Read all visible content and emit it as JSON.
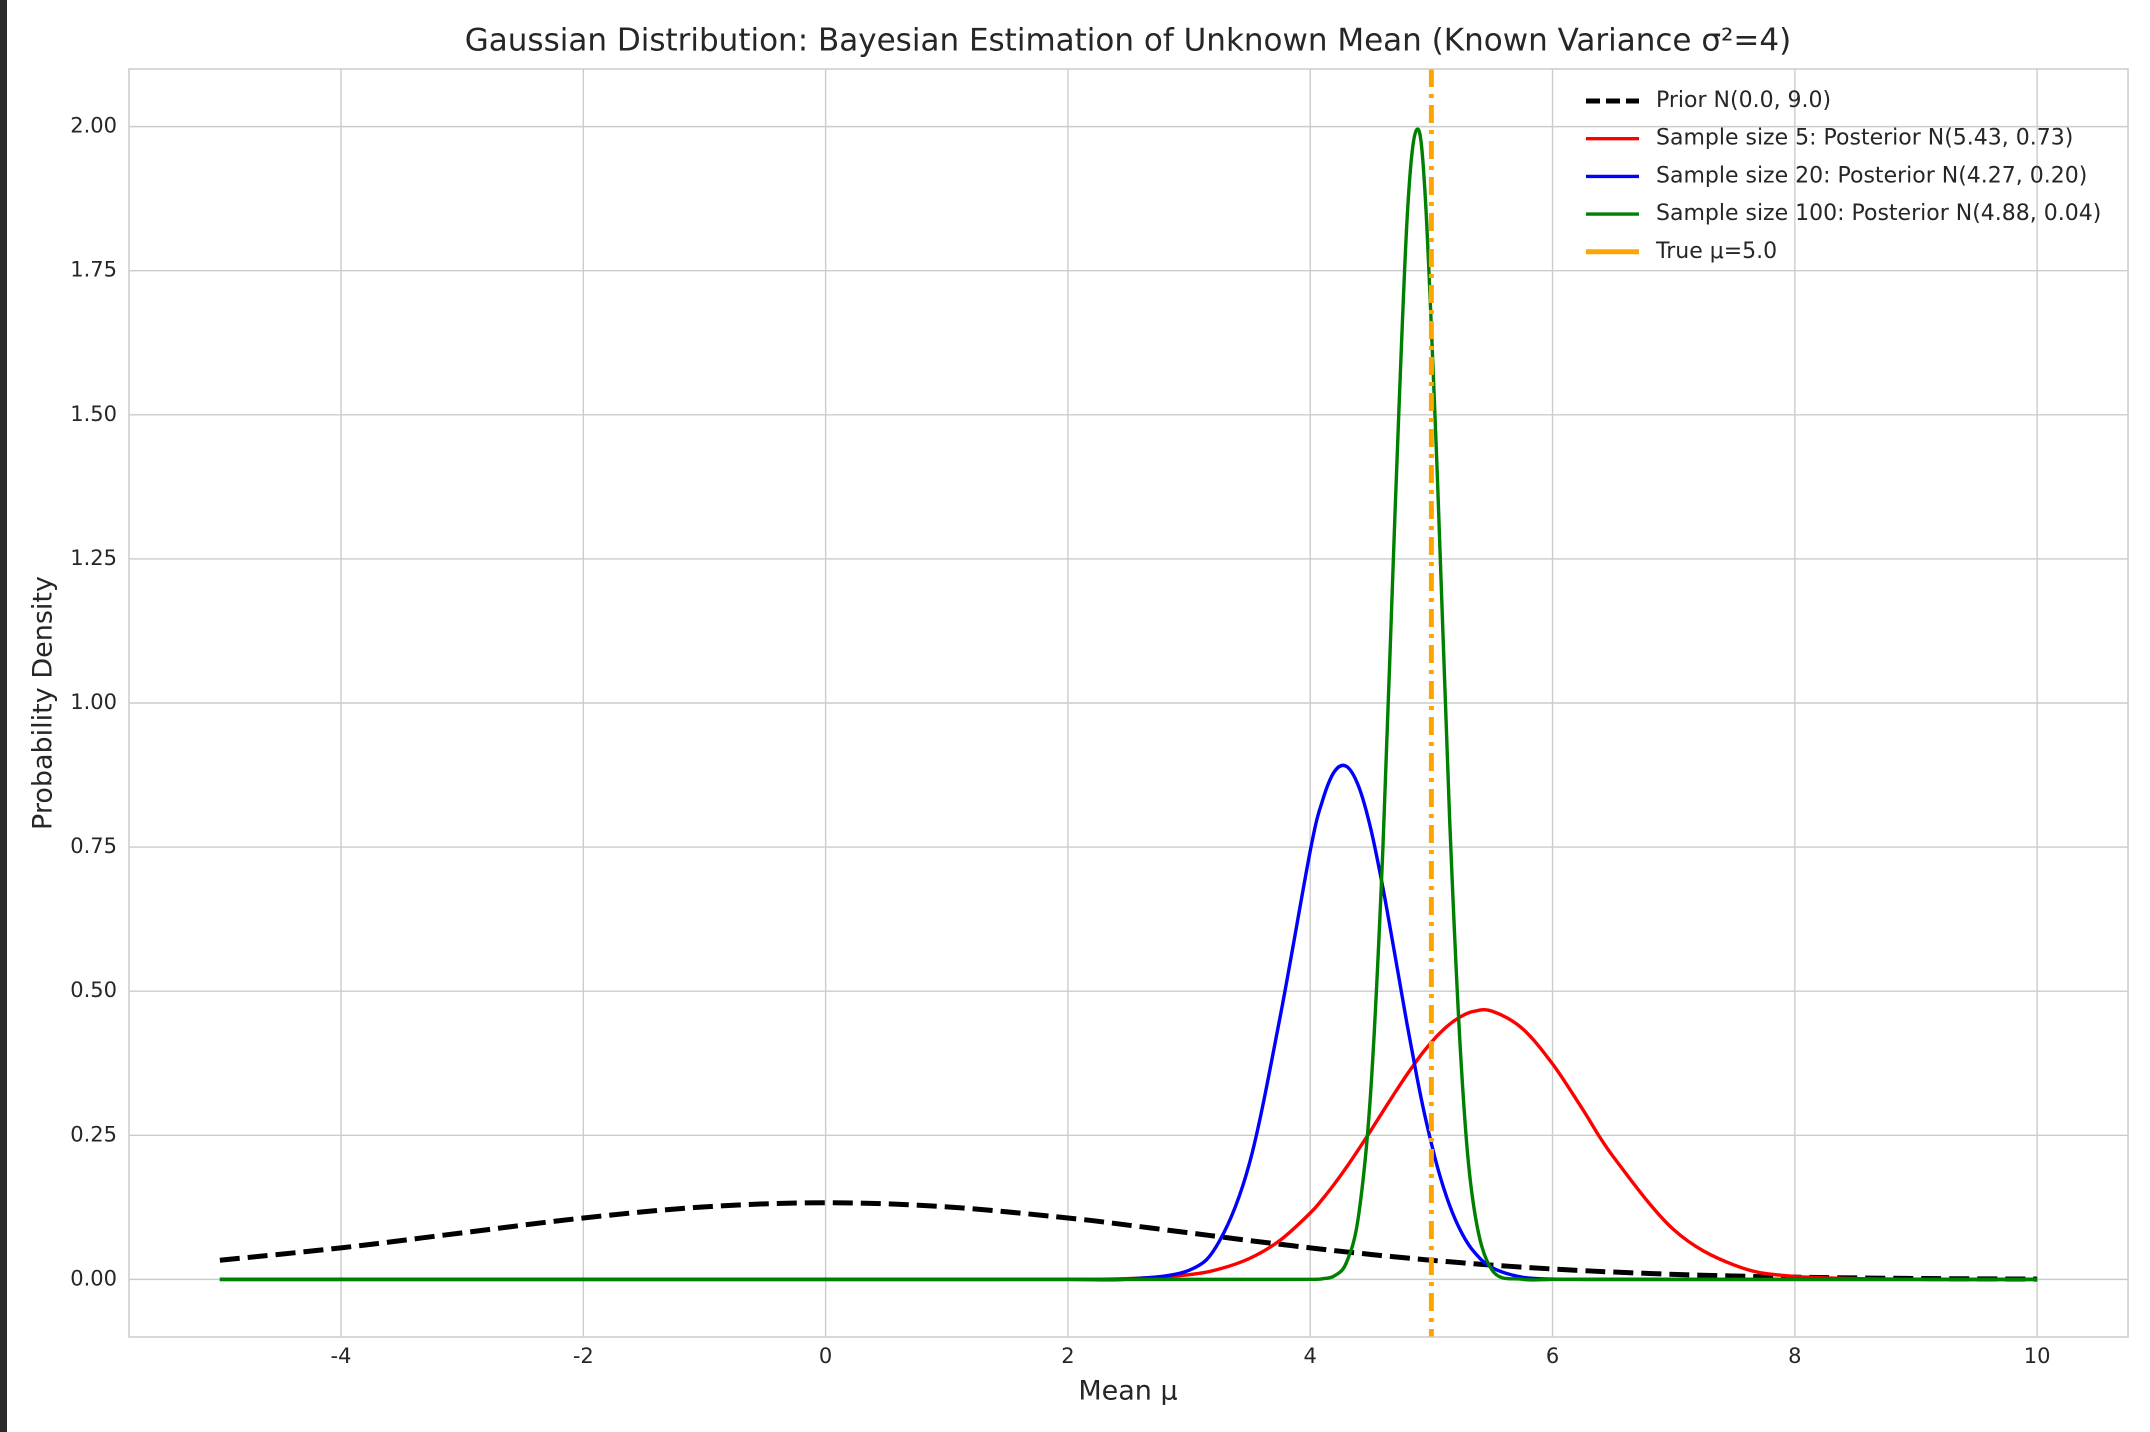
{
  "chart_data": {
    "type": "line",
    "title": "Gaussian Distribution: Bayesian Estimation of Unknown Mean (Known Variance σ²=4)",
    "x_label": "Mean μ",
    "y_label": "Probability Density",
    "x": [
      -5,
      -4,
      -3,
      -2,
      -1,
      0,
      1,
      2,
      2.5,
      3,
      3.25,
      3.5,
      3.75,
      4,
      4.1,
      4.2,
      4.3,
      4.4,
      4.5,
      4.6,
      4.7,
      4.8,
      4.88,
      4.95,
      5.05,
      5.15,
      5.25,
      5.35,
      5.5,
      5.75,
      6,
      6.25,
      6.5,
      7,
      7.5,
      8,
      9,
      10
    ],
    "series": [
      {
        "name": "Prior N(0.0, 9.0)",
        "color": "#000000",
        "linestyle": "dashed",
        "values": [
          0.0332,
          0.0547,
          0.0807,
          0.1065,
          0.1258,
          0.133,
          0.1258,
          0.1065,
          0.094,
          0.0807,
          0.074,
          0.0673,
          0.0609,
          0.0547,
          0.0523,
          0.0499,
          0.0476,
          0.0454,
          0.0432,
          0.041,
          0.039,
          0.037,
          0.0354,
          0.0341,
          0.0322,
          0.0305,
          0.0288,
          0.0271,
          0.0248,
          0.0212,
          0.018,
          0.0152,
          0.0127,
          0.0087,
          0.0058,
          0.0038,
          0.0015,
          0.0005
        ]
      },
      {
        "name": "Sample size 5: Posterior N(5.43, 0.73)",
        "color": "#ff0000",
        "linestyle": "solid",
        "values": [
          0,
          0,
          0,
          0,
          0,
          0,
          0,
          0.0001,
          0.0013,
          0.0082,
          0.018,
          0.0364,
          0.0676,
          0.1151,
          0.139,
          0.1657,
          0.1947,
          0.2258,
          0.2582,
          0.2914,
          0.3242,
          0.3559,
          0.3796,
          0.3988,
          0.423,
          0.4426,
          0.4567,
          0.465,
          0.4654,
          0.4354,
          0.3738,
          0.2947,
          0.2132,
          0.0863,
          0.0248,
          0.0051,
          0.0001,
          0
        ]
      },
      {
        "name": "Sample size 20: Posterior N(4.27, 0.20)",
        "color": "#0000ff",
        "linestyle": "solid",
        "values": [
          0,
          0,
          0,
          0,
          0,
          0,
          0,
          0,
          0.0004,
          0.0158,
          0.0662,
          0.2026,
          0.4537,
          0.7434,
          0.8298,
          0.8811,
          0.89,
          0.8551,
          0.7815,
          0.6793,
          0.5618,
          0.4419,
          0.3519,
          0.2807,
          0.1949,
          0.1287,
          0.0808,
          0.0483,
          0.0203,
          0.0037,
          0.0005,
          0,
          0,
          0,
          0,
          0,
          0,
          0
        ]
      },
      {
        "name": "Sample size 100: Posterior N(4.88, 0.04)",
        "color": "#008000",
        "linestyle": "solid",
        "values": [
          0,
          0,
          0,
          0,
          0,
          0,
          0,
          0,
          0,
          0,
          0,
          0,
          0,
          0.0001,
          0.001,
          0.0062,
          0.0298,
          0.112,
          0.3281,
          0.7488,
          1.3306,
          1.8416,
          1.995,
          1.8765,
          1.3901,
          0.802,
          0.3603,
          0.1261,
          0.0163,
          0.0002,
          0,
          0,
          0,
          0,
          0,
          0,
          0,
          0
        ]
      }
    ],
    "vline": {
      "x": 5.0,
      "name": "True μ=5.0",
      "color": "#ffa500",
      "linestyle": "dashdot"
    },
    "xlim": [
      -5.75,
      10.75
    ],
    "ylim": [
      -0.1,
      2.1
    ],
    "xticks": [
      -4,
      -2,
      0,
      2,
      4,
      6,
      8,
      10
    ],
    "yticks": [
      {
        "value": 0,
        "label": "0.00"
      },
      {
        "value": 0.25,
        "label": "0.25"
      },
      {
        "value": 0.5,
        "label": "0.50"
      },
      {
        "value": 0.75,
        "label": "0.75"
      },
      {
        "value": 1,
        "label": "1.00"
      },
      {
        "value": 1.25,
        "label": "1.25"
      },
      {
        "value": 1.5,
        "label": "1.50"
      },
      {
        "value": 1.75,
        "label": "1.75"
      },
      {
        "value": 2,
        "label": "2.00"
      }
    ],
    "grid": true,
    "legend": "upper right"
  }
}
